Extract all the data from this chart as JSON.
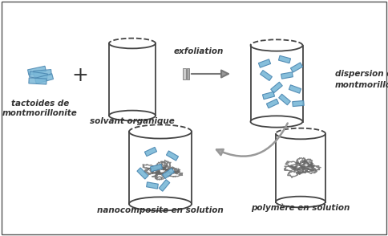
{
  "background_color": "#ffffff",
  "border_color": "#888888",
  "labels": {
    "tactoides": "tactoides de\nmontmorillonite",
    "solvant": "solvant organique",
    "exfoliation": "exfoliation",
    "dispersion": "dispersion de\nmontmorillonite",
    "nanocomposite": "nanocomposite en solution",
    "polymere": "polymère en solution"
  },
  "clay_color": "#7ab8d8",
  "clay_edge_color": "#4a86b0",
  "polymer_color": "#666666",
  "cylinder_fill": "#ffffff",
  "cylinder_edge": "#444444",
  "arrow_color": "#888888",
  "label_fontsize": 7.5,
  "label_style": "italic",
  "label_weight": "bold",
  "plus_fontsize": 18,
  "frame_color": "#555555"
}
